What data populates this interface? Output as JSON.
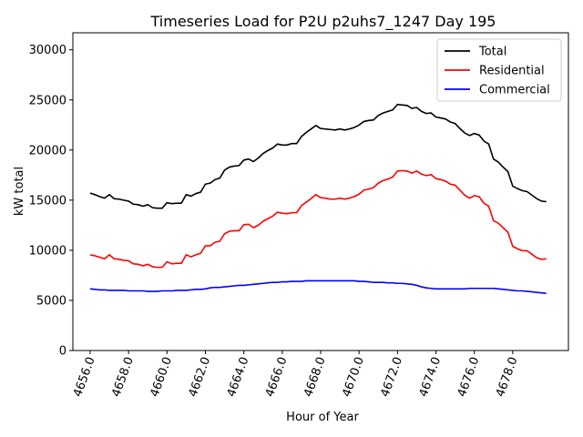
{
  "chart_data": {
    "type": "line",
    "title": "Timeseries Load for P2U p2uhs7_1247  Day 195",
    "xlabel": "Hour of Year",
    "ylabel": "kW total",
    "xlim": [
      4655.1,
      4680.9
    ],
    "ylim": [
      0,
      31700
    ],
    "xticks": [
      4656,
      4658,
      4660,
      4662,
      4664,
      4666,
      4668,
      4670,
      4672,
      4674,
      4676,
      4678
    ],
    "xtick_labels": [
      "4656.0",
      "4658.0",
      "4660.0",
      "4662.0",
      "4664.0",
      "4666.0",
      "4668.0",
      "4670.0",
      "4672.0",
      "4674.0",
      "4676.0",
      "4678.0"
    ],
    "yticks": [
      0,
      5000,
      10000,
      15000,
      20000,
      25000,
      30000
    ],
    "ytick_labels": [
      "0",
      "5000",
      "10000",
      "15000",
      "20000",
      "25000",
      "30000"
    ],
    "legend_position": "top-right",
    "grid": false,
    "x": [
      4656.0,
      4656.25,
      4656.5,
      4656.75,
      4657.0,
      4657.25,
      4657.5,
      4657.75,
      4658.0,
      4658.25,
      4658.5,
      4658.75,
      4659.0,
      4659.25,
      4659.5,
      4659.75,
      4660.0,
      4660.25,
      4660.5,
      4660.75,
      4661.0,
      4661.25,
      4661.5,
      4661.75,
      4662.0,
      4662.25,
      4662.5,
      4662.75,
      4663.0,
      4663.25,
      4663.5,
      4663.75,
      4664.0,
      4664.25,
      4664.5,
      4664.75,
      4665.0,
      4665.25,
      4665.5,
      4665.75,
      4666.0,
      4666.25,
      4666.5,
      4666.75,
      4667.0,
      4667.25,
      4667.5,
      4667.75,
      4668.0,
      4668.25,
      4668.5,
      4668.75,
      4669.0,
      4669.25,
      4669.5,
      4669.75,
      4670.0,
      4670.25,
      4670.5,
      4670.75,
      4671.0,
      4671.25,
      4671.5,
      4671.75,
      4672.0,
      4672.25,
      4672.5,
      4672.75,
      4673.0,
      4673.25,
      4673.5,
      4673.75,
      4674.0,
      4674.25,
      4674.5,
      4674.75,
      4675.0,
      4675.25,
      4675.5,
      4675.75,
      4676.0,
      4676.25,
      4676.5,
      4676.75,
      4677.0,
      4677.25,
      4677.5,
      4677.75,
      4678.0,
      4678.25,
      4678.5,
      4678.75,
      4679.0,
      4679.25,
      4679.5,
      4679.75
    ],
    "series": [
      {
        "name": "Total",
        "color": "#000000",
        "values": [
          15700,
          15550,
          15350,
          15200,
          15550,
          15150,
          15100,
          15000,
          14900,
          14600,
          14550,
          14400,
          14550,
          14250,
          14200,
          14200,
          14750,
          14650,
          14700,
          14700,
          15550,
          15400,
          15650,
          15800,
          16600,
          16700,
          17050,
          17200,
          18000,
          18300,
          18400,
          18450,
          19000,
          19100,
          18850,
          19200,
          19650,
          19950,
          20200,
          20600,
          20500,
          20500,
          20650,
          20650,
          21350,
          21750,
          22100,
          22450,
          22150,
          22100,
          22050,
          22000,
          22100,
          22000,
          22100,
          22250,
          22500,
          22850,
          22950,
          23000,
          23450,
          23700,
          23850,
          24000,
          24550,
          24500,
          24450,
          24150,
          24250,
          23850,
          23650,
          23700,
          23300,
          23200,
          23100,
          22800,
          22650,
          22150,
          21700,
          21450,
          21650,
          21500,
          20900,
          20600,
          19100,
          18800,
          18300,
          17850,
          16400,
          16150,
          15950,
          15850,
          15500,
          15150,
          14900,
          14850
        ]
      },
      {
        "name": "Residential",
        "color": "#ff0000",
        "values": [
          9550,
          9450,
          9300,
          9150,
          9550,
          9150,
          9100,
          9000,
          8950,
          8650,
          8600,
          8450,
          8600,
          8350,
          8300,
          8300,
          8850,
          8650,
          8700,
          8700,
          9550,
          9350,
          9550,
          9700,
          10450,
          10450,
          10800,
          10900,
          11650,
          11900,
          11950,
          11950,
          12550,
          12600,
          12250,
          12500,
          12900,
          13150,
          13400,
          13800,
          13700,
          13650,
          13750,
          13750,
          14450,
          14800,
          15150,
          15550,
          15250,
          15200,
          15100,
          15100,
          15200,
          15100,
          15200,
          15350,
          15600,
          16000,
          16100,
          16250,
          16700,
          16950,
          17100,
          17300,
          17900,
          17950,
          17900,
          17700,
          17900,
          17600,
          17450,
          17550,
          17150,
          17050,
          16900,
          16600,
          16500,
          16000,
          15500,
          15200,
          15450,
          15350,
          14700,
          14400,
          12950,
          12700,
          12250,
          11800,
          10400,
          10150,
          9950,
          9950,
          9600,
          9250,
          9100,
          9150
        ]
      },
      {
        "name": "Commercial",
        "color": "#0000ff",
        "values": [
          6150,
          6100,
          6050,
          6050,
          6000,
          6000,
          6000,
          6000,
          5950,
          5950,
          5950,
          5950,
          5900,
          5900,
          5900,
          5950,
          5950,
          5950,
          6000,
          6000,
          6000,
          6050,
          6100,
          6100,
          6150,
          6250,
          6300,
          6300,
          6350,
          6400,
          6450,
          6500,
          6500,
          6550,
          6600,
          6650,
          6700,
          6750,
          6800,
          6800,
          6850,
          6850,
          6900,
          6900,
          6900,
          6950,
          6950,
          6950,
          6950,
          6950,
          6950,
          6950,
          6950,
          6950,
          6950,
          6950,
          6900,
          6900,
          6850,
          6800,
          6800,
          6800,
          6750,
          6750,
          6700,
          6700,
          6650,
          6600,
          6500,
          6350,
          6250,
          6200,
          6150,
          6150,
          6150,
          6150,
          6150,
          6150,
          6150,
          6200,
          6200,
          6200,
          6200,
          6200,
          6200,
          6150,
          6100,
          6050,
          6000,
          5950,
          5950,
          5900,
          5850,
          5800,
          5750,
          5700
        ]
      }
    ]
  }
}
